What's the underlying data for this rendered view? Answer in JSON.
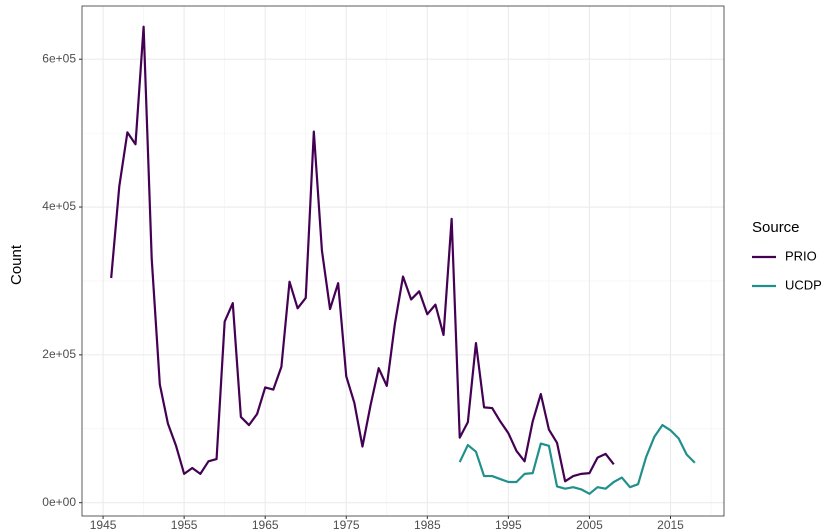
{
  "chart_data": {
    "type": "line",
    "y_label": "Count",
    "legend_title": "Source",
    "legend": "right",
    "grid": true,
    "xlim": [
      1942.4,
      2021.6
    ],
    "xticks": [
      1945,
      1955,
      1965,
      1975,
      1985,
      1995,
      2005,
      2015
    ],
    "minor_xticks": [
      1950,
      1960,
      1970,
      1980,
      1990,
      2000,
      2010,
      2020
    ],
    "ylim": [
      -18000,
      672000
    ],
    "yticks": [
      {
        "value": 0,
        "label": "0e+00"
      },
      {
        "value": 200000,
        "label": "2e+05"
      },
      {
        "value": 400000,
        "label": "4e+05"
      },
      {
        "value": 600000,
        "label": "6e+05"
      }
    ],
    "minor_yticks": [
      100000,
      300000,
      500000
    ],
    "series": [
      {
        "name": "PRIO",
        "color": "#440154",
        "x": [
          1946,
          1947,
          1948,
          1949,
          1950,
          1951,
          1952,
          1953,
          1954,
          1955,
          1956,
          1957,
          1958,
          1959,
          1960,
          1961,
          1962,
          1963,
          1964,
          1965,
          1966,
          1967,
          1968,
          1969,
          1970,
          1971,
          1972,
          1973,
          1974,
          1975,
          1976,
          1977,
          1978,
          1979,
          1980,
          1981,
          1982,
          1983,
          1984,
          1985,
          1986,
          1987,
          1988,
          1989,
          1990,
          1991,
          1992,
          1993,
          1994,
          1995,
          1996,
          1997,
          1998,
          1999,
          2000,
          2001,
          2002,
          2003,
          2004,
          2005,
          2006,
          2007,
          2008
        ],
        "values": [
          304000,
          428000,
          501000,
          485000,
          644000,
          330000,
          160000,
          107000,
          77000,
          39000,
          47000,
          39000,
          56000,
          59000,
          245000,
          270000,
          116000,
          105000,
          120000,
          156000,
          153000,
          184000,
          299000,
          263000,
          277000,
          502000,
          341000,
          262000,
          297000,
          171000,
          135000,
          76000,
          132000,
          182000,
          158000,
          242000,
          306000,
          275000,
          286000,
          255000,
          268000,
          227000,
          384000,
          88000,
          109000,
          216000,
          129000,
          128000,
          110000,
          94000,
          70000,
          56000,
          110000,
          147000,
          99000,
          81000,
          29000,
          36000,
          39000,
          40000,
          61000,
          66000,
          52000
        ]
      },
      {
        "name": "UCDP",
        "color": "#21908C",
        "x": [
          1989,
          1990,
          1991,
          1992,
          1993,
          1994,
          1995,
          1996,
          1997,
          1998,
          1999,
          2000,
          2001,
          2002,
          2003,
          2004,
          2005,
          2006,
          2007,
          2008,
          2009,
          2010,
          2011,
          2012,
          2013,
          2014,
          2015,
          2016,
          2017,
          2018
        ],
        "values": [
          55000,
          78000,
          69000,
          36000,
          36000,
          32000,
          28000,
          28000,
          39000,
          40000,
          80000,
          77000,
          22000,
          19000,
          21000,
          18000,
          12000,
          21000,
          19000,
          28000,
          34000,
          21000,
          25000,
          62000,
          89000,
          105000,
          98000,
          87000,
          65000,
          54000
        ]
      }
    ]
  }
}
